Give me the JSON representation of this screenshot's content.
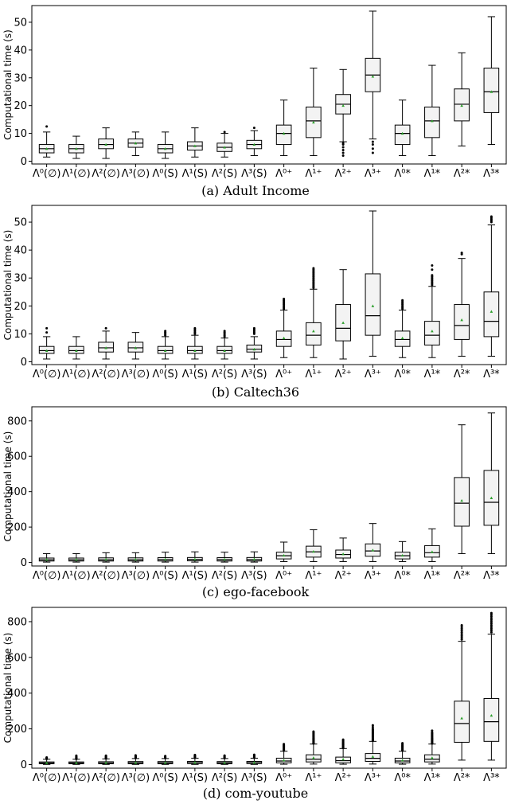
{
  "figure": {
    "captions": [
      "(a) Adult Income",
      "(b) Caltech36",
      "(c) ego-facebook",
      "(d) com-youtube"
    ]
  },
  "colors": {
    "box_fill": "#f3f3f3",
    "median": "#000000",
    "mean_marker": "#2ca02c",
    "outlier": "#000000"
  },
  "chart_data": [
    {
      "type": "box",
      "caption": "(a) Adult Income",
      "ylabel": "Computational time (s)",
      "ylim": [
        -1,
        56
      ],
      "yticks": [
        "0",
        "10",
        "20",
        "30",
        "40",
        "50"
      ],
      "ytick_values": [
        0,
        10,
        20,
        30,
        40,
        50
      ],
      "categories": [
        "Λ⁰(∅)",
        "Λ¹(∅)",
        "Λ²(∅)",
        "Λ³(∅)",
        "Λ⁰(S)",
        "Λ¹(S)",
        "Λ²(S)",
        "Λ³(S)",
        "Λ⁰⁺",
        "Λ¹⁺",
        "Λ²⁺",
        "Λ³⁺",
        "Λ⁰*",
        "Λ¹*",
        "Λ²*",
        "Λ³*"
      ],
      "boxes": [
        {
          "whisker_low": 1.5,
          "q1": 3,
          "median": 4.5,
          "q3": 6,
          "whisker_high": 10.5,
          "mean": 4.5,
          "outliers": [
            12.5
          ]
        },
        {
          "whisker_low": 1,
          "q1": 3,
          "median": 4.5,
          "q3": 6,
          "whisker_high": 9,
          "mean": 4.5,
          "outliers": []
        },
        {
          "whisker_low": 1,
          "q1": 4.5,
          "median": 6,
          "q3": 8,
          "whisker_high": 12,
          "mean": 6,
          "outliers": []
        },
        {
          "whisker_low": 2,
          "q1": 5,
          "median": 6.5,
          "q3": 8,
          "whisker_high": 10.5,
          "mean": 6.5,
          "outliers": []
        },
        {
          "whisker_low": 1,
          "q1": 3,
          "median": 4.5,
          "q3": 6,
          "whisker_high": 10.5,
          "mean": 4.5,
          "outliers": []
        },
        {
          "whisker_low": 1.5,
          "q1": 4,
          "median": 5.5,
          "q3": 7,
          "whisker_high": 12,
          "mean": 5.5,
          "outliers": []
        },
        {
          "whisker_low": 1.5,
          "q1": 3.5,
          "median": 5,
          "q3": 6.5,
          "whisker_high": 10,
          "mean": 5,
          "outliers": [
            10.5
          ]
        },
        {
          "whisker_low": 2,
          "q1": 4.5,
          "median": 6,
          "q3": 7.5,
          "whisker_high": 11,
          "mean": 6,
          "outliers": [
            12
          ]
        },
        {
          "whisker_low": 2,
          "q1": 6,
          "median": 10,
          "q3": 13,
          "whisker_high": 22,
          "mean": 10,
          "outliers": []
        },
        {
          "whisker_low": 2,
          "q1": 8.5,
          "median": 14.5,
          "q3": 19.5,
          "whisker_high": 33.5,
          "mean": 14,
          "outliers": []
        },
        {
          "whisker_low": 7,
          "q1": 17,
          "median": 20.5,
          "q3": 24,
          "whisker_high": 33,
          "mean": 20,
          "outliers": [
            2,
            3,
            4,
            5,
            6,
            6.5
          ]
        },
        {
          "whisker_low": 8,
          "q1": 25,
          "median": 31,
          "q3": 37,
          "whisker_high": 54,
          "mean": 30.5,
          "outliers": [
            3,
            4.5,
            6,
            7
          ]
        },
        {
          "whisker_low": 2,
          "q1": 6,
          "median": 10,
          "q3": 13,
          "whisker_high": 22,
          "mean": 10,
          "outliers": []
        },
        {
          "whisker_low": 2,
          "q1": 8.5,
          "median": 14.5,
          "q3": 19.5,
          "whisker_high": 34.5,
          "mean": 14.5,
          "outliers": []
        },
        {
          "whisker_low": 5.5,
          "q1": 14.5,
          "median": 20.5,
          "q3": 26,
          "whisker_high": 39,
          "mean": 20,
          "outliers": []
        },
        {
          "whisker_low": 6,
          "q1": 17.5,
          "median": 25,
          "q3": 33.5,
          "whisker_high": 52,
          "mean": 25,
          "outliers": []
        }
      ]
    },
    {
      "type": "box",
      "caption": "(b) Caltech36",
      "ylabel": "Computational time (s)",
      "ylim": [
        -1,
        56
      ],
      "yticks": [
        "0",
        "10",
        "20",
        "30",
        "40",
        "50"
      ],
      "ytick_values": [
        0,
        10,
        20,
        30,
        40,
        50
      ],
      "categories": [
        "Λ⁰(∅)",
        "Λ¹(∅)",
        "Λ²(∅)",
        "Λ³(∅)",
        "Λ⁰(S)",
        "Λ¹(S)",
        "Λ²(S)",
        "Λ³(S)",
        "Λ⁰⁺",
        "Λ¹⁺",
        "Λ²⁺",
        "Λ³⁺",
        "Λ⁰*",
        "Λ¹*",
        "Λ²*",
        "Λ³*"
      ],
      "boxes": [
        {
          "whisker_low": 1,
          "q1": 3,
          "median": 4,
          "q3": 5.5,
          "whisker_high": 9,
          "mean": 4,
          "outliers": [
            10.5,
            12
          ]
        },
        {
          "whisker_low": 1,
          "q1": 3,
          "median": 4,
          "q3": 5.5,
          "whisker_high": 9,
          "mean": 4,
          "outliers": []
        },
        {
          "whisker_low": 1,
          "q1": 3.5,
          "median": 5,
          "q3": 7,
          "whisker_high": 11,
          "mean": 5,
          "outliers": [
            12
          ]
        },
        {
          "whisker_low": 1,
          "q1": 3.5,
          "median": 5,
          "q3": 7,
          "whisker_high": 10.5,
          "mean": 5,
          "outliers": []
        },
        {
          "whisker_low": 1,
          "q1": 3,
          "median": 4,
          "q3": 5.5,
          "whisker_high": 9,
          "mean": 4,
          "outliers": [
            9.5,
            10,
            10.5,
            11
          ]
        },
        {
          "whisker_low": 1,
          "q1": 3,
          "median": 4,
          "q3": 5.5,
          "whisker_high": 9.5,
          "mean": 4,
          "outliers": [
            10,
            10.5,
            11,
            11.5,
            12
          ]
        },
        {
          "whisker_low": 1,
          "q1": 3,
          "median": 4,
          "q3": 5.5,
          "whisker_high": 8.5,
          "mean": 4,
          "outliers": [
            9,
            9.5,
            10,
            10.5,
            11
          ]
        },
        {
          "whisker_low": 1,
          "q1": 3.5,
          "median": 4.5,
          "q3": 6,
          "whisker_high": 9,
          "mean": 4.5,
          "outliers": [
            10,
            10.5,
            11,
            11.5,
            12
          ]
        },
        {
          "whisker_low": 1.5,
          "q1": 5.5,
          "median": 8,
          "q3": 11,
          "whisker_high": 18.5,
          "mean": 8.5,
          "outliers": [
            19,
            19.5,
            20,
            20.5,
            21,
            21.5,
            22,
            22.5
          ]
        },
        {
          "whisker_low": 1.5,
          "q1": 6,
          "median": 9.5,
          "q3": 14,
          "whisker_high": 26,
          "mean": 11,
          "outliers": [
            26.5,
            27,
            27.5,
            28,
            28.5,
            29,
            29.5,
            30,
            30.5,
            31,
            31.5,
            32,
            32.5,
            33,
            33.5
          ]
        },
        {
          "whisker_low": 1,
          "q1": 7.5,
          "median": 12,
          "q3": 20.5,
          "whisker_high": 33,
          "mean": 14,
          "outliers": []
        },
        {
          "whisker_low": 2,
          "q1": 9.5,
          "median": 16.5,
          "q3": 31.5,
          "whisker_high": 54,
          "mean": 20,
          "outliers": []
        },
        {
          "whisker_low": 1.5,
          "q1": 5.5,
          "median": 8,
          "q3": 11,
          "whisker_high": 18.5,
          "mean": 8.5,
          "outliers": [
            19,
            19.5,
            20,
            20.5,
            21,
            21.5,
            22
          ]
        },
        {
          "whisker_low": 1.5,
          "q1": 6,
          "median": 9.5,
          "q3": 14.5,
          "whisker_high": 27,
          "mean": 11,
          "outliers": [
            27.5,
            28,
            28.5,
            29,
            29.5,
            30,
            30.5,
            31,
            33,
            34.5
          ]
        },
        {
          "whisker_low": 2,
          "q1": 8,
          "median": 13,
          "q3": 20.5,
          "whisker_high": 37,
          "mean": 15,
          "outliers": [
            38.5,
            39
          ]
        },
        {
          "whisker_low": 2,
          "q1": 9,
          "median": 14.5,
          "q3": 25,
          "whisker_high": 49,
          "mean": 18,
          "outliers": [
            50,
            50.5,
            51,
            51.5,
            52
          ]
        }
      ]
    },
    {
      "type": "box",
      "caption": "(c) ego-facebook",
      "ylabel": "Computational time (s)",
      "ylim": [
        -20,
        880
      ],
      "yticks": [
        "0",
        "200",
        "400",
        "600",
        "800"
      ],
      "ytick_values": [
        0,
        200,
        400,
        600,
        800
      ],
      "categories": [
        "Λ⁰(∅)",
        "Λ¹(∅)",
        "Λ²(∅)",
        "Λ³(∅)",
        "Λ⁰(S)",
        "Λ¹(S)",
        "Λ²(S)",
        "Λ³(S)",
        "Λ⁰⁺",
        "Λ¹⁺",
        "Λ²⁺",
        "Λ³⁺",
        "Λ⁰*",
        "Λ¹*",
        "Λ²*",
        "Λ³*"
      ],
      "boxes": [
        {
          "whisker_low": 2,
          "q1": 8,
          "median": 15,
          "q3": 25,
          "whisker_high": 50,
          "mean": 17,
          "outliers": []
        },
        {
          "whisker_low": 2,
          "q1": 8,
          "median": 15,
          "q3": 25,
          "whisker_high": 50,
          "mean": 17,
          "outliers": []
        },
        {
          "whisker_low": 2,
          "q1": 8,
          "median": 15,
          "q3": 26,
          "whisker_high": 55,
          "mean": 18,
          "outliers": []
        },
        {
          "whisker_low": 2,
          "q1": 8,
          "median": 15,
          "q3": 26,
          "whisker_high": 55,
          "mean": 18,
          "outliers": []
        },
        {
          "whisker_low": 2,
          "q1": 8,
          "median": 16,
          "q3": 27,
          "whisker_high": 58,
          "mean": 18,
          "outliers": []
        },
        {
          "whisker_low": 2,
          "q1": 9,
          "median": 17,
          "q3": 28,
          "whisker_high": 60,
          "mean": 19,
          "outliers": []
        },
        {
          "whisker_low": 2,
          "q1": 8,
          "median": 16,
          "q3": 27,
          "whisker_high": 58,
          "mean": 18,
          "outliers": []
        },
        {
          "whisker_low": 2,
          "q1": 8,
          "median": 16,
          "q3": 28,
          "whisker_high": 60,
          "mean": 19,
          "outliers": []
        },
        {
          "whisker_low": 5,
          "q1": 20,
          "median": 38,
          "q3": 58,
          "whisker_high": 115,
          "mean": 40,
          "outliers": []
        },
        {
          "whisker_low": 5,
          "q1": 30,
          "median": 60,
          "q3": 92,
          "whisker_high": 185,
          "mean": 62,
          "outliers": []
        },
        {
          "whisker_low": 5,
          "q1": 25,
          "median": 45,
          "q3": 70,
          "whisker_high": 138,
          "mean": 48,
          "outliers": []
        },
        {
          "whisker_low": 5,
          "q1": 35,
          "median": 65,
          "q3": 105,
          "whisker_high": 220,
          "mean": 70,
          "outliers": []
        },
        {
          "whisker_low": 5,
          "q1": 20,
          "median": 38,
          "q3": 58,
          "whisker_high": 118,
          "mean": 40,
          "outliers": []
        },
        {
          "whisker_low": 5,
          "q1": 30,
          "median": 55,
          "q3": 95,
          "whisker_high": 190,
          "mean": 60,
          "outliers": []
        },
        {
          "whisker_low": 50,
          "q1": 205,
          "median": 335,
          "q3": 480,
          "whisker_high": 778,
          "mean": 350,
          "outliers": []
        },
        {
          "whisker_low": 50,
          "q1": 210,
          "median": 340,
          "q3": 520,
          "whisker_high": 845,
          "mean": 365,
          "outliers": []
        }
      ]
    },
    {
      "type": "box",
      "caption": "(d) com-youtube",
      "ylabel": "Computational time (s)",
      "ylim": [
        -20,
        880
      ],
      "yticks": [
        "0",
        "200",
        "400",
        "600",
        "800"
      ],
      "ytick_values": [
        0,
        200,
        400,
        600,
        800
      ],
      "categories": [
        "Λ⁰(∅)",
        "Λ¹(∅)",
        "Λ²(∅)",
        "Λ³(∅)",
        "Λ⁰(S)",
        "Λ¹(S)",
        "Λ²(S)",
        "Λ³(S)",
        "Λ⁰⁺",
        "Λ¹⁺",
        "Λ²⁺",
        "Λ³⁺",
        "Λ⁰*",
        "Λ¹*",
        "Λ²*",
        "Λ³*"
      ],
      "boxes": [
        {
          "whisker_low": 1,
          "q1": 5,
          "median": 9,
          "q3": 15,
          "whisker_high": 30,
          "mean": 10,
          "outliers": [
            32,
            35,
            38,
            40
          ]
        },
        {
          "whisker_low": 1,
          "q1": 5,
          "median": 9,
          "q3": 15,
          "whisker_high": 30,
          "mean": 10,
          "outliers": [
            32,
            35,
            38,
            42,
            45,
            50
          ]
        },
        {
          "whisker_low": 1,
          "q1": 5,
          "median": 9,
          "q3": 16,
          "whisker_high": 32,
          "mean": 11,
          "outliers": [
            34,
            37,
            40,
            43,
            46,
            50
          ]
        },
        {
          "whisker_low": 1,
          "q1": 5,
          "median": 10,
          "q3": 17,
          "whisker_high": 34,
          "mean": 11,
          "outliers": [
            36,
            39,
            42,
            45,
            48,
            52
          ]
        },
        {
          "whisker_low": 1,
          "q1": 5,
          "median": 10,
          "q3": 17,
          "whisker_high": 34,
          "mean": 11,
          "outliers": [
            36,
            39,
            42,
            45,
            48
          ]
        },
        {
          "whisker_low": 1,
          "q1": 6,
          "median": 11,
          "q3": 18,
          "whisker_high": 36,
          "mean": 12,
          "outliers": [
            38,
            41,
            44,
            47,
            50,
            54
          ]
        },
        {
          "whisker_low": 1,
          "q1": 5,
          "median": 10,
          "q3": 17,
          "whisker_high": 34,
          "mean": 11,
          "outliers": [
            36,
            39,
            42,
            45,
            48,
            51
          ]
        },
        {
          "whisker_low": 1,
          "q1": 6,
          "median": 11,
          "q3": 18,
          "whisker_high": 36,
          "mean": 12,
          "outliers": [
            38,
            42,
            46,
            50,
            55
          ]
        },
        {
          "whisker_low": 2,
          "q1": 10,
          "median": 20,
          "q3": 36,
          "whisker_high": 75,
          "mean": 25,
          "outliers": [
            78,
            82,
            86,
            90,
            94,
            98,
            102,
            106,
            110,
            115
          ]
        },
        {
          "whisker_low": 3,
          "q1": 15,
          "median": 30,
          "q3": 55,
          "whisker_high": 115,
          "mean": 38,
          "outliers": [
            118,
            122,
            126,
            130,
            134,
            138,
            142,
            146,
            150,
            155,
            160,
            165,
            170,
            175,
            180,
            185
          ]
        },
        {
          "whisker_low": 2,
          "q1": 10,
          "median": 22,
          "q3": 42,
          "whisker_high": 90,
          "mean": 30,
          "outliers": [
            93,
            97,
            101,
            105,
            109,
            113,
            117,
            121,
            125,
            130,
            135,
            140
          ]
        },
        {
          "whisker_low": 3,
          "q1": 18,
          "median": 35,
          "q3": 62,
          "whisker_high": 130,
          "mean": 45,
          "outliers": [
            133,
            137,
            141,
            145,
            150,
            155,
            160,
            165,
            170,
            175,
            180,
            185,
            190,
            195,
            200,
            210,
            220
          ]
        },
        {
          "whisker_low": 2,
          "q1": 10,
          "median": 20,
          "q3": 36,
          "whisker_high": 75,
          "mean": 25,
          "outliers": [
            78,
            82,
            86,
            90,
            94,
            98,
            102,
            106,
            110,
            115,
            120
          ]
        },
        {
          "whisker_low": 3,
          "q1": 15,
          "median": 30,
          "q3": 55,
          "whisker_high": 115,
          "mean": 38,
          "outliers": [
            118,
            122,
            126,
            130,
            134,
            138,
            142,
            146,
            150,
            155,
            160,
            165,
            170,
            175,
            180,
            190
          ]
        },
        {
          "whisker_low": 25,
          "q1": 125,
          "median": 230,
          "q3": 355,
          "whisker_high": 690,
          "mean": 260,
          "outliers": [
            700,
            710,
            720,
            730,
            740,
            750,
            760,
            770,
            780
          ]
        },
        {
          "whisker_low": 25,
          "q1": 130,
          "median": 240,
          "q3": 370,
          "whisker_high": 730,
          "mean": 275,
          "outliers": [
            740,
            750,
            760,
            770,
            780,
            790,
            800,
            810,
            820,
            830,
            840,
            848
          ]
        }
      ]
    }
  ]
}
